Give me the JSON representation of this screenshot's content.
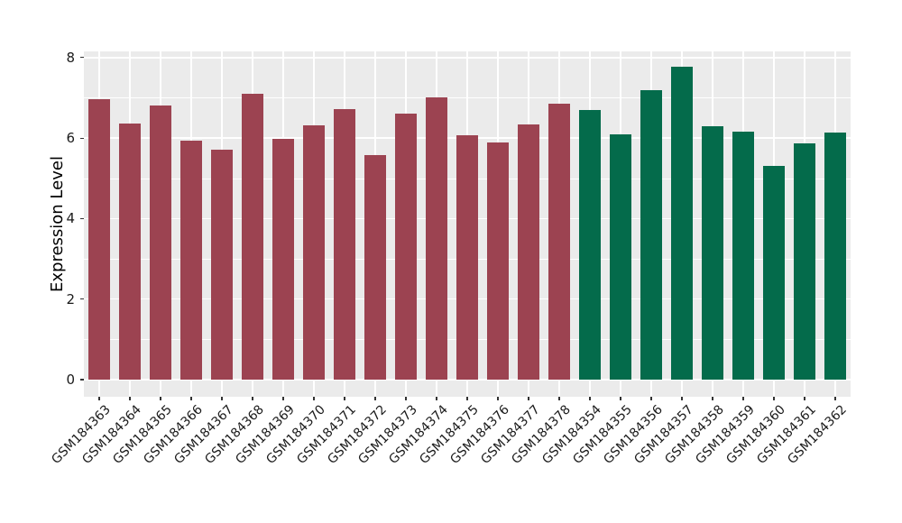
{
  "chart_data": {
    "type": "bar",
    "title": "",
    "xlabel": "",
    "ylabel": "Expression Level",
    "ylim": [
      0,
      8
    ],
    "yticks": [
      0,
      2,
      4,
      6,
      8
    ],
    "yminor_gridlines": [
      1,
      3,
      5,
      7
    ],
    "grid": "on",
    "legend": "none",
    "panel_bg": "#EBEBEB",
    "grid_color": "#FFFFFF",
    "tick_color": "#333333",
    "text_color": "#1a1a1a",
    "group_colors": {
      "maroon": "#9C4351",
      "green": "#046B4B"
    },
    "categories": [
      "GSM184363",
      "GSM184364",
      "GSM184365",
      "GSM184366",
      "GSM184367",
      "GSM184368",
      "GSM184369",
      "GSM184370",
      "GSM184371",
      "GSM184372",
      "GSM184373",
      "GSM184374",
      "GSM184375",
      "GSM184376",
      "GSM184377",
      "GSM184378",
      "GSM184354",
      "GSM184355",
      "GSM184356",
      "GSM184357",
      "GSM184358",
      "GSM184359",
      "GSM184360",
      "GSM184361",
      "GSM184362"
    ],
    "values": [
      6.96,
      6.35,
      6.81,
      5.94,
      5.7,
      7.1,
      5.98,
      6.31,
      6.72,
      5.58,
      6.6,
      7.01,
      6.08,
      5.88,
      6.34,
      6.85,
      6.69,
      6.09,
      7.2,
      7.78,
      6.29,
      6.16,
      5.31,
      5.87,
      6.14
    ],
    "bar_groups": [
      "maroon",
      "maroon",
      "maroon",
      "maroon",
      "maroon",
      "maroon",
      "maroon",
      "maroon",
      "maroon",
      "maroon",
      "maroon",
      "maroon",
      "maroon",
      "maroon",
      "maroon",
      "maroon",
      "green",
      "green",
      "green",
      "green",
      "green",
      "green",
      "green",
      "green",
      "green"
    ]
  }
}
